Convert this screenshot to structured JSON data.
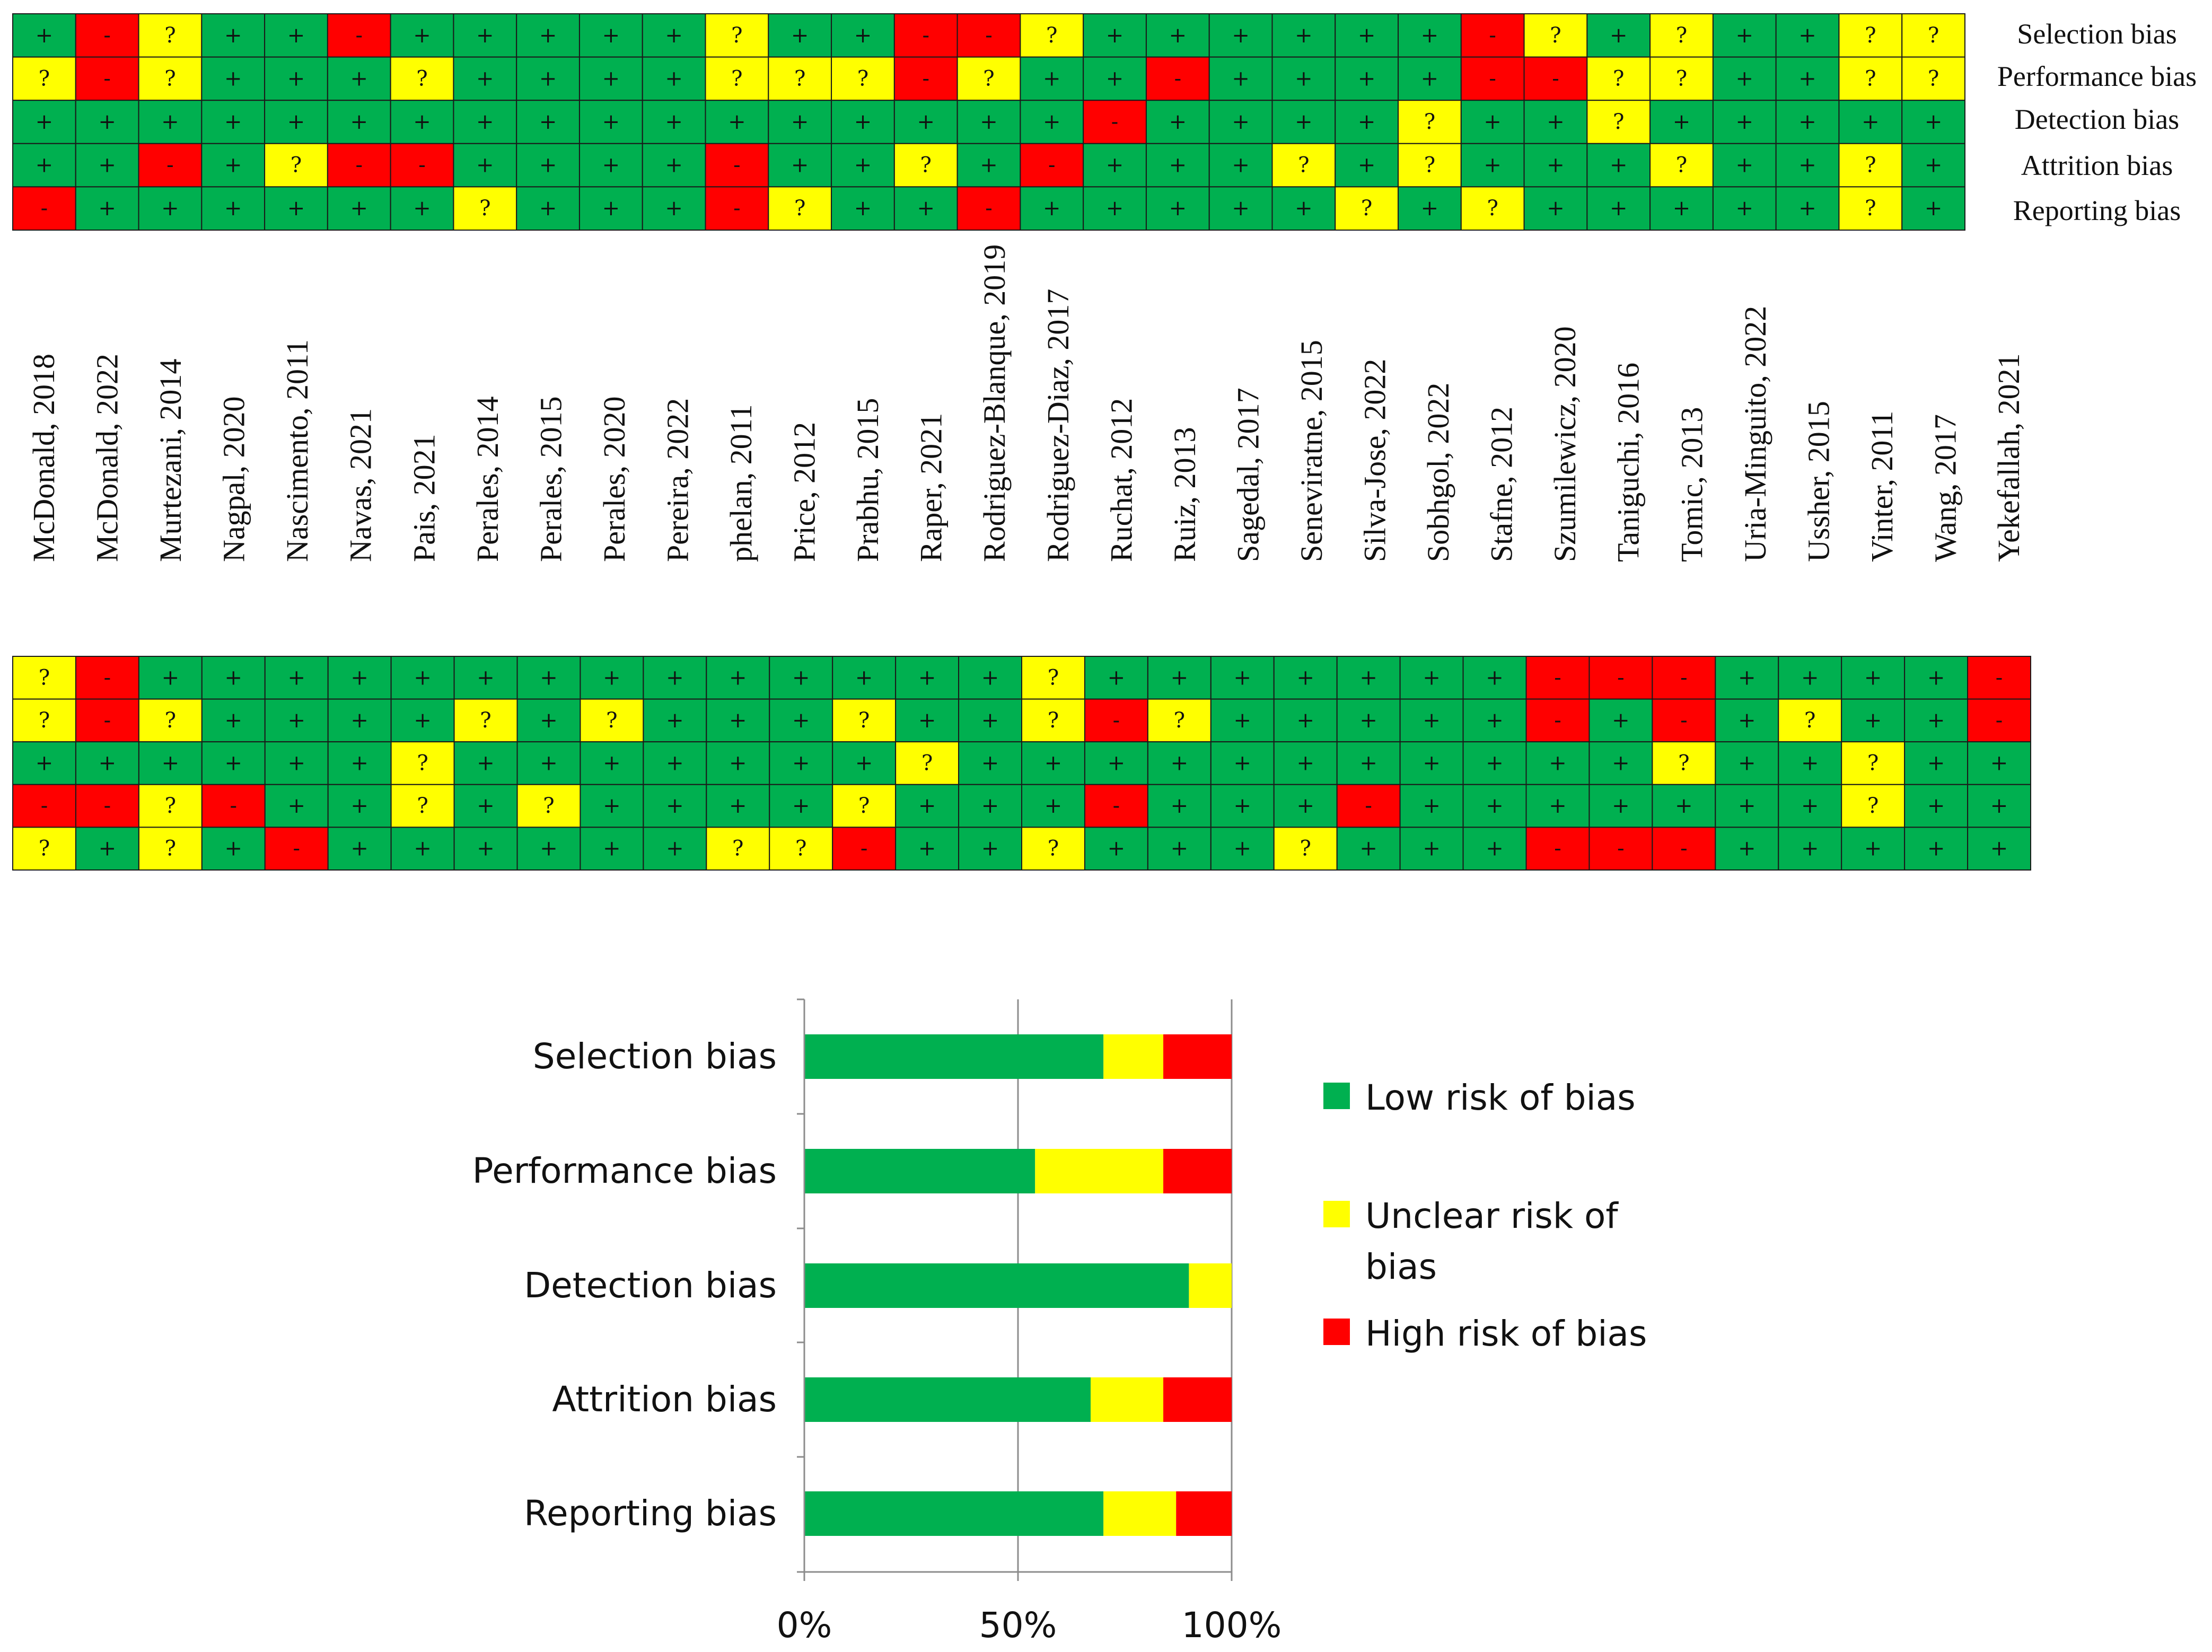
{
  "chart_data": [
    {
      "type": "table",
      "categories": [
        "Selection bias",
        "Performance bias",
        "Detection bias",
        "Attrition bias",
        "Reporting bias"
      ],
      "studies": [
        "McDonald, 2018",
        "McDonald, 2022",
        "Murtezani, 2014",
        "Nagpal, 2020",
        "Nascimento, 2011",
        "Navas, 2021",
        "Pais, 2021",
        "Perales, 2014",
        "Perales, 2015",
        "Perales, 2020",
        "Pereira, 2022",
        "phelan, 2011",
        "Price, 2012",
        "Prabhu, 2015",
        "Raper, 2021",
        "Rodriguez-Blanque, 2019",
        "Rodriguez-Diaz, 2017",
        "Ruchat, 2012",
        "Ruiz, 2013",
        "Sagedal, 2017",
        "Seneviratne, 2015",
        "Silva-Jose, 2022",
        "Sobhgol, 2022",
        "Stafne, 2012",
        "Szumilewicz, 2020",
        "Taniguchi, 2016",
        "Tomic, 2013",
        "Uria-Minguito, 2022",
        "Ussher, 2015",
        "Vinter, 2011",
        "Wang, 2017",
        "Yekefallah, 2021"
      ],
      "symbols": {
        "low": "+",
        "unclear": "?",
        "high": "-"
      },
      "colors": {
        "low": "#00b050",
        "unclear": "#ffff00",
        "high": "#ff0000"
      },
      "top_grid": [
        [
          "+",
          "-",
          "?",
          "+",
          "+",
          "-",
          "+",
          "+",
          "+",
          "+",
          "+",
          "?",
          "+",
          "+",
          "-",
          "-",
          "?",
          "+",
          "+",
          "+",
          "+",
          "+",
          "+",
          "-",
          "?",
          "+",
          "?",
          "+",
          "+",
          "?",
          "?"
        ],
        [
          "?",
          "-",
          "?",
          "+",
          "+",
          "+",
          "?",
          "+",
          "+",
          "+",
          "+",
          "?",
          "?",
          "?",
          "-",
          "?",
          "+",
          "+",
          "-",
          "+",
          "+",
          "+",
          "+",
          "-",
          "-",
          "?",
          "?",
          "+",
          "+",
          "?",
          "?"
        ],
        [
          "+",
          "+",
          "+",
          "+",
          "+",
          "+",
          "+",
          "+",
          "+",
          "+",
          "+",
          "+",
          "+",
          "+",
          "+",
          "+",
          "+",
          "-",
          "+",
          "+",
          "+",
          "+",
          "?",
          "+",
          "+",
          "?",
          "+",
          "+",
          "+",
          "+",
          "+"
        ],
        [
          "+",
          "+",
          "-",
          "+",
          "?",
          "-",
          "-",
          "+",
          "+",
          "+",
          "+",
          "-",
          "+",
          "+",
          "?",
          "+",
          "-",
          "+",
          "+",
          "+",
          "?",
          "+",
          "?",
          "+",
          "+",
          "+",
          "?",
          "+",
          "+",
          "?",
          "+"
        ],
        [
          "-",
          "+",
          "+",
          "+",
          "+",
          "+",
          "+",
          "?",
          "+",
          "+",
          "+",
          "-",
          "?",
          "+",
          "+",
          "-",
          "+",
          "+",
          "+",
          "+",
          "+",
          "?",
          "+",
          "?",
          "+",
          "+",
          "+",
          "+",
          "+",
          "?",
          "+"
        ]
      ],
      "bottom_grid": [
        [
          "?",
          "-",
          "+",
          "+",
          "+",
          "+",
          "+",
          "+",
          "+",
          "+",
          "+",
          "+",
          "+",
          "+",
          "+",
          "+",
          "?",
          "+",
          "+",
          "+",
          "+",
          "+",
          "+",
          "+",
          "-",
          "-",
          "-",
          "+",
          "+",
          "+",
          "+",
          "-"
        ],
        [
          "?",
          "-",
          "?",
          "+",
          "+",
          "+",
          "+",
          "?",
          "+",
          "?",
          "+",
          "+",
          "+",
          "?",
          "+",
          "+",
          "?",
          "-",
          "?",
          "+",
          "+",
          "+",
          "+",
          "+",
          "-",
          "+",
          "-",
          "+",
          "?",
          "+",
          "+",
          "-"
        ],
        [
          "+",
          "+",
          "+",
          "+",
          "+",
          "+",
          "?",
          "+",
          "+",
          "+",
          "+",
          "+",
          "+",
          "+",
          "?",
          "+",
          "+",
          "+",
          "+",
          "+",
          "+",
          "+",
          "+",
          "+",
          "+",
          "+",
          "?",
          "+",
          "+",
          "?",
          "+",
          "+"
        ],
        [
          "-",
          "-",
          "?",
          "-",
          "+",
          "+",
          "?",
          "+",
          "?",
          "+",
          "+",
          "+",
          "+",
          "?",
          "+",
          "+",
          "+",
          "-",
          "+",
          "+",
          "+",
          "-",
          "+",
          "+",
          "+",
          "+",
          "+",
          "+",
          "+",
          "?",
          "+",
          "+"
        ],
        [
          "?",
          "+",
          "?",
          "+",
          "-",
          "+",
          "+",
          "+",
          "+",
          "+",
          "+",
          "?",
          "?",
          "-",
          "+",
          "+",
          "?",
          "+",
          "+",
          "+",
          "?",
          "+",
          "+",
          "+",
          "-",
          "-",
          "-",
          "+",
          "+",
          "+",
          "+",
          "+"
        ]
      ]
    },
    {
      "type": "bar",
      "orientation": "horizontal",
      "stacked": true,
      "categories": [
        "Selection bias",
        "Performance bias",
        "Detection bias",
        "Attrition bias",
        "Reporting bias"
      ],
      "series": [
        {
          "name": "Low risk of bias",
          "color": "#00b050",
          "values": [
            70,
            54,
            90,
            67,
            70
          ]
        },
        {
          "name": "Unclear risk of bias",
          "color": "#ffff00",
          "values": [
            14,
            30,
            10,
            17,
            17
          ]
        },
        {
          "name": "High risk of bias",
          "color": "#ff0000",
          "values": [
            16,
            16,
            0,
            16,
            13
          ]
        }
      ],
      "xlim": [
        0,
        100
      ],
      "xticks": [
        "0%",
        "50%",
        "100%"
      ],
      "grid": true,
      "legend": "right",
      "legend_entries": [
        "Low risk of bias",
        "Unclear risk of bias",
        "High risk of bias"
      ]
    }
  ]
}
